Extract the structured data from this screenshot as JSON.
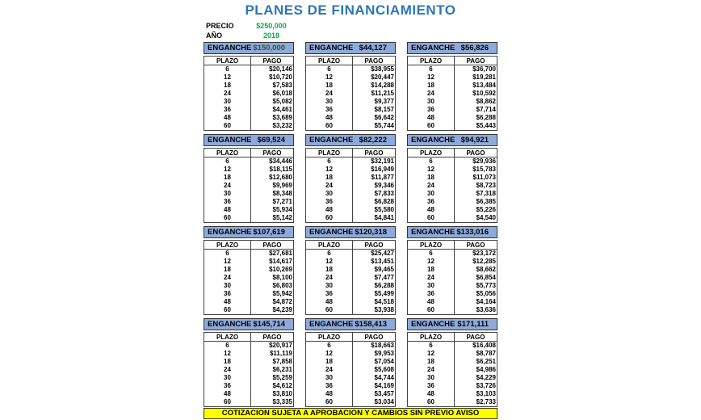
{
  "title": "PLANES DE FINANCIAMIENTO",
  "precio_label": "PRECIO",
  "precio_value": "$250,000",
  "anio_label": "AÑO",
  "anio_value": "2018",
  "enganche_label": "ENGANCHE",
  "col_plazo": "PLAZO",
  "col_pago": "PAGO",
  "plazos": [
    "6",
    "12",
    "18",
    "24",
    "30",
    "36",
    "48",
    "60"
  ],
  "plans": [
    {
      "enganche": "$150,000",
      "pagos": [
        "$20,146",
        "$10,720",
        "$7,583",
        "$6,018",
        "$5,082",
        "$4,461",
        "$3,689",
        "$3,232"
      ]
    },
    {
      "enganche": "$44,127",
      "pagos": [
        "$38,955",
        "$20,447",
        "$14,288",
        "$11,215",
        "$9,377",
        "$8,157",
        "$6,642",
        "$5,744"
      ]
    },
    {
      "enganche": "$56,826",
      "pagos": [
        "$36,700",
        "$19,281",
        "$13,484",
        "$10,592",
        "$8,862",
        "$7,714",
        "$6,288",
        "$5,443"
      ]
    },
    {
      "enganche": "$69,524",
      "pagos": [
        "$34,446",
        "$18,115",
        "$12,680",
        "$9,969",
        "$8,348",
        "$7,271",
        "$5,934",
        "$5,142"
      ]
    },
    {
      "enganche": "$82,222",
      "pagos": [
        "$32,191",
        "$16,949",
        "$11,877",
        "$9,346",
        "$7,833",
        "$6,828",
        "$5,580",
        "$4,841"
      ]
    },
    {
      "enganche": "$94,921",
      "pagos": [
        "$29,936",
        "$15,783",
        "$11,073",
        "$8,723",
        "$7,318",
        "$6,385",
        "$5,226",
        "$4,540"
      ]
    },
    {
      "enganche": "$107,619",
      "pagos": [
        "$27,681",
        "$14,617",
        "$10,269",
        "$8,100",
        "$6,803",
        "$5,942",
        "$4,872",
        "$4,239"
      ]
    },
    {
      "enganche": "$120,318",
      "pagos": [
        "$25,427",
        "$13,451",
        "$9,465",
        "$7,477",
        "$6,288",
        "$5,499",
        "$4,518",
        "$3,938"
      ]
    },
    {
      "enganche": "$133,016",
      "pagos": [
        "$23,172",
        "$12,285",
        "$8,662",
        "$6,854",
        "$5,773",
        "$5,056",
        "$4,164",
        "$3,636"
      ]
    },
    {
      "enganche": "$145,714",
      "pagos": [
        "$20,917",
        "$11,119",
        "$7,858",
        "$6,231",
        "$5,259",
        "$4,612",
        "$3,810",
        "$3,335"
      ]
    },
    {
      "enganche": "$158,413",
      "pagos": [
        "$18,663",
        "$9,953",
        "$7,054",
        "$5,608",
        "$4,744",
        "$4,169",
        "$3,457",
        "$3,034"
      ]
    },
    {
      "enganche": "$171,111",
      "pagos": [
        "$16,408",
        "$8,787",
        "$6,251",
        "$4,986",
        "$4,229",
        "$3,726",
        "$3,103",
        "$2,733"
      ]
    }
  ],
  "footer": "COTIZACION SUJETA A APROBACION Y CAMBIOS SIN PREVIO AVISO",
  "colors": {
    "title": "#2e75b6",
    "header_fill": "#8eaadb",
    "precio": "#00b050",
    "footer_fill": "#ffff00"
  }
}
